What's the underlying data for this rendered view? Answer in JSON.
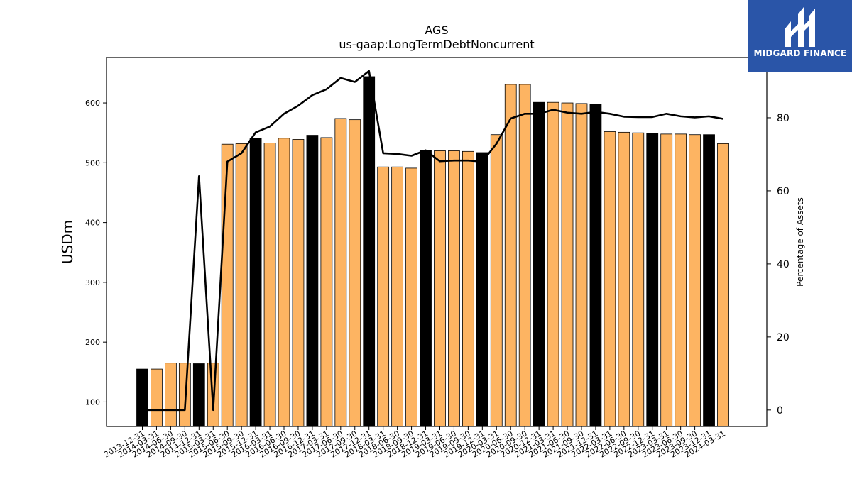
{
  "logo": {
    "text": "MIDGARD FINANCE",
    "background": "#2a55a8"
  },
  "chart_data": {
    "type": "bar",
    "title": "AGS",
    "subtitle": "us-gaap:LongTermDebtNoncurrent",
    "ylabel": "USDm",
    "y2label": "Percentage of Assets",
    "ylim": [
      59,
      676
    ],
    "y2lim": [
      -4.5,
      96.5
    ],
    "yticks": [
      100,
      200,
      300,
      400,
      500,
      600
    ],
    "y2ticks": [
      0,
      20,
      40,
      60,
      80
    ],
    "grid": false,
    "colors": {
      "bar": "#fdb462",
      "bar_highlight": "#000000",
      "line": "#000000"
    },
    "categories": [
      "2013-12-31",
      "2014-03-31",
      "2014-06-30",
      "2014-09-30",
      "2014-12-31",
      "2015-03-31",
      "2015-06-30",
      "2015-09-30",
      "2015-12-31",
      "2016-03-31",
      "2016-06-30",
      "2016-09-30",
      "2016-12-31",
      "2017-03-31",
      "2017-06-30",
      "2017-09-30",
      "2017-12-31",
      "2018-03-31",
      "2018-06-30",
      "2018-09-30",
      "2018-12-31",
      "2019-03-31",
      "2019-06-30",
      "2019-09-30",
      "2019-12-31",
      "2020-03-31",
      "2020-06-30",
      "2020-09-30",
      "2020-12-31",
      "2021-03-31",
      "2021-06-30",
      "2021-09-30",
      "2021-12-31",
      "2022-03-31",
      "2022-06-30",
      "2022-09-30",
      "2022-12-31",
      "2023-03-31",
      "2023-06-30",
      "2023-09-30",
      "2023-12-31",
      "2024-03-31"
    ],
    "series": [
      {
        "kind": "bar",
        "values": [
          155,
          155,
          165,
          165,
          164,
          165,
          531,
          532,
          541,
          533,
          541,
          539,
          546,
          542,
          574,
          572,
          644,
          493,
          493,
          491,
          521,
          520,
          520,
          519,
          517,
          547,
          631,
          631,
          601,
          601,
          600,
          599,
          598,
          552,
          551,
          550,
          549,
          548,
          548,
          547,
          547,
          532
        ],
        "highlight": [
          true,
          false,
          false,
          false,
          true,
          false,
          false,
          false,
          true,
          false,
          false,
          false,
          true,
          false,
          false,
          false,
          true,
          false,
          false,
          false,
          true,
          false,
          false,
          false,
          true,
          false,
          false,
          false,
          true,
          false,
          false,
          false,
          true,
          false,
          false,
          false,
          true,
          false,
          false,
          false,
          true,
          false
        ]
      },
      {
        "kind": "line",
        "axis": "right",
        "values": [
          0,
          0,
          0,
          0,
          64,
          0,
          68,
          70.3,
          76,
          77.6,
          81.1,
          83.3,
          86.2,
          87.8,
          90.9,
          89.8,
          92.8,
          70.3,
          70.1,
          69.6,
          71.1,
          68.1,
          68.3,
          68.3,
          68,
          72.9,
          79.8,
          81.1,
          81.1,
          82.2,
          81.4,
          81.1,
          81.6,
          81.1,
          80.3,
          80.2,
          80.2,
          81.1,
          80.4,
          80.1,
          80.4,
          79.7
        ]
      }
    ]
  }
}
